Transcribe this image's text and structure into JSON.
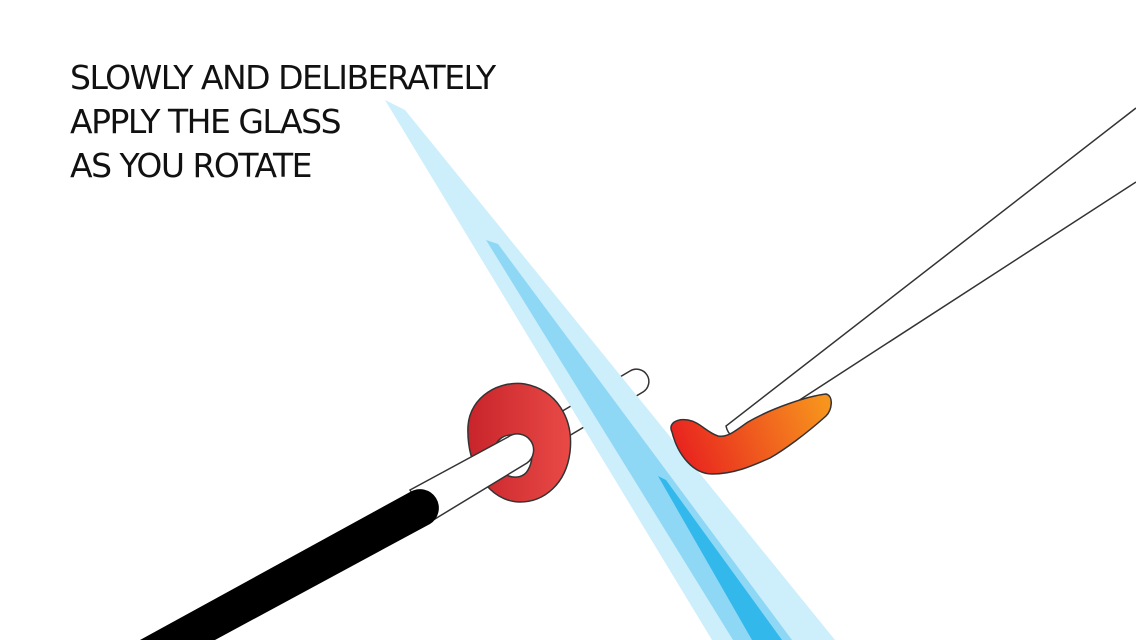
{
  "instruction": {
    "lines": [
      "SLOWLY AND DELIBERATELY",
      "APPLY THE GLASS",
      "AS YOU ROTATE"
    ]
  },
  "illustration": {
    "parts": [
      "torch-flame",
      "mandrel",
      "glass-bead",
      "glass-rod"
    ],
    "colors": {
      "flame_outer": "#cdeefb",
      "flame_mid": "#8fd8f5",
      "flame_inner": "#33b8ec",
      "bead_red": "#c8242b",
      "bead_red_light": "#e94a46",
      "molten_orange": "#f7941d",
      "molten_red": "#e8231f",
      "mandrel_handle": "#000000",
      "outline": "#333333"
    }
  }
}
